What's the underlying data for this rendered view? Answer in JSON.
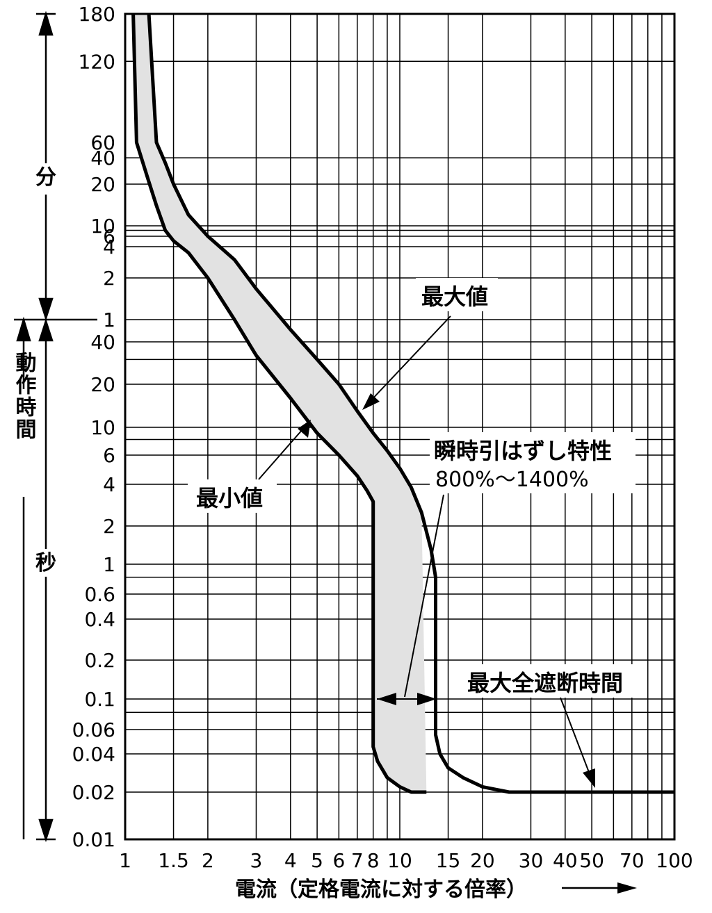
{
  "chart_data": {
    "type": "line",
    "xscale": "log",
    "xlim": [
      1,
      100
    ],
    "x_ticks": [
      "1",
      "1.5",
      "2",
      "3",
      "4",
      "5",
      "6",
      "7",
      "8",
      "10",
      "15",
      "20",
      "30",
      "40",
      "50",
      "70",
      "100"
    ],
    "y_ticks_minutes": [
      "180",
      "120",
      "60",
      "40",
      "20",
      "10",
      "6",
      "4",
      "2",
      "1"
    ],
    "y_ticks_seconds": [
      "40",
      "20",
      "10",
      "6",
      "4",
      "2",
      "1",
      "0.6",
      "0.4",
      "0.2",
      "0.1",
      "0.06",
      "0.04",
      "0.02",
      "0.01"
    ],
    "xlabel": "電流（定格電流に対する倍率）",
    "ylabel": "動作時間",
    "y_unit_minutes": "分",
    "y_unit_seconds": "秒",
    "grid": true,
    "series": [
      {
        "name": "最大値",
        "points": [
          [
            1.22,
            10800
          ],
          [
            1.3,
            3600
          ],
          [
            1.4,
            2100
          ],
          [
            1.5,
            1200
          ],
          [
            1.7,
            720
          ],
          [
            2.0,
            360
          ],
          [
            2.5,
            180
          ],
          [
            3.0,
            100
          ],
          [
            4.0,
            50
          ],
          [
            5.0,
            30
          ],
          [
            6.0,
            20
          ],
          [
            7.0,
            13
          ],
          [
            8.0,
            9
          ],
          [
            9.0,
            6.5
          ],
          [
            10.0,
            5
          ],
          [
            11.0,
            3.8
          ],
          [
            12.0,
            2.5
          ],
          [
            13.0,
            1.3
          ],
          [
            13.5,
            0.8
          ],
          [
            13.5,
            0.1
          ],
          [
            13.5,
            0.055
          ],
          [
            14.0,
            0.04
          ],
          [
            15.0,
            0.031
          ],
          [
            17.0,
            0.026
          ],
          [
            20.0,
            0.022
          ],
          [
            25.0,
            0.02
          ],
          [
            30.0,
            0.02
          ],
          [
            50.0,
            0.02
          ],
          [
            100.0,
            0.02
          ]
        ]
      },
      {
        "name": "最小値",
        "points": [
          [
            1.07,
            10800
          ],
          [
            1.1,
            3600
          ],
          [
            1.2,
            1500
          ],
          [
            1.3,
            840
          ],
          [
            1.4,
            480
          ],
          [
            1.5,
            300
          ],
          [
            1.7,
            210
          ],
          [
            2.0,
            120
          ],
          [
            2.5,
            60
          ],
          [
            3.0,
            32
          ],
          [
            4.0,
            16
          ],
          [
            5.0,
            9
          ],
          [
            6.0,
            6
          ],
          [
            7.0,
            4.5
          ],
          [
            7.6,
            3.6
          ],
          [
            8.0,
            3.0
          ],
          [
            8.0,
            0.1
          ],
          [
            8.0,
            0.045
          ],
          [
            8.3,
            0.035
          ],
          [
            9.0,
            0.026
          ],
          [
            10.0,
            0.022
          ],
          [
            11.0,
            0.02
          ],
          [
            12.5,
            0.02
          ]
        ]
      }
    ],
    "annotations": {
      "max_label": "最大値",
      "min_label": "最小値",
      "instant_label": "瞬時引はずし特性",
      "instant_range": "800%～1400%",
      "total_clearing_label": "最大全遮断時間"
    }
  }
}
